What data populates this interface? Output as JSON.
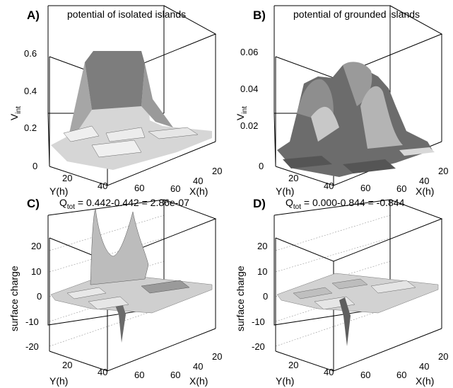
{
  "chart_data": [
    {
      "panel_letter": "A)",
      "title": "potential of isolated islands",
      "type": "surface3d",
      "zlabel_main": "V",
      "zlabel_sub": "int",
      "xlabel": "Y(h)",
      "ylabel": "X(h)",
      "zticks": [
        "0",
        "0.2",
        "0.4",
        "0.6"
      ],
      "zlim": [
        0,
        0.6
      ],
      "xticks": [
        "20",
        "40",
        "60"
      ],
      "yticks": [
        "20",
        "40",
        "60"
      ],
      "peak": 0.6,
      "baseline": 0.12,
      "colors": {
        "surface": "#8a8a8a",
        "highlight": "#f2f2f2"
      }
    },
    {
      "panel_letter": "B)",
      "title": "potential of grounded islands",
      "type": "surface3d",
      "zlabel_main": "V",
      "zlabel_sub": "int",
      "xlabel": "Y(h)",
      "ylabel": "X(h)",
      "zticks": [
        "0",
        "0.02",
        "0.04",
        "0.06"
      ],
      "zlim": [
        0,
        0.06
      ],
      "xticks": [
        "20",
        "40",
        "60"
      ],
      "yticks": [
        "20",
        "40",
        "60"
      ],
      "peak": 0.055,
      "baseline": 0.0,
      "colors": {
        "surface": "#6e6e6e",
        "highlight": "#e8e8e8"
      }
    },
    {
      "panel_letter": "C)",
      "title_prefix": "Q",
      "title_sub": "tot",
      "title_expr": " = 0.442-0.442 = 2.86e-07",
      "type": "surface3d",
      "zlabel": "surface charge",
      "xlabel": "Y(h)",
      "ylabel": "X(h)",
      "zticks": [
        "-20",
        "-10",
        "0",
        "10",
        "20"
      ],
      "zlim": [
        -20,
        20
      ],
      "xticks": [
        "20",
        "40",
        "60"
      ],
      "yticks": [
        "20",
        "40",
        "60"
      ],
      "peak": 20,
      "trough": -17,
      "colors": {
        "surface": "#9a9a9a",
        "highlight": "#ededed"
      }
    },
    {
      "panel_letter": "D)",
      "title_prefix": "Q",
      "title_sub": "tot",
      "title_expr": " = 0.000-0.844 = -0.844",
      "type": "surface3d",
      "zlabel": "surface charge",
      "xlabel": "Y(h)",
      "ylabel": "X(h)",
      "zticks": [
        "-20",
        "-10",
        "0",
        "10",
        "20"
      ],
      "zlim": [
        -20,
        20
      ],
      "xticks": [
        "20",
        "40",
        "60"
      ],
      "yticks": [
        "20",
        "40",
        "60"
      ],
      "peak": 0,
      "trough": -19,
      "colors": {
        "surface": "#a0a0a0",
        "highlight": "#ededed"
      }
    }
  ]
}
